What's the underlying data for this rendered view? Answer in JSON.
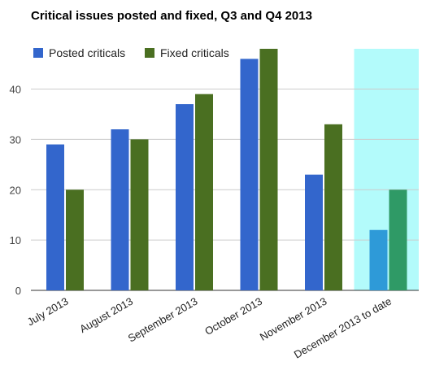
{
  "chart_data": {
    "type": "bar",
    "title": "Critical issues posted and fixed, Q3 and Q4 2013",
    "categories": [
      "July 2013",
      "August 2013",
      "September 2013",
      "October 2013",
      "November 2013",
      "December 2013 to date"
    ],
    "series": [
      {
        "name": "Posted criticals",
        "values": [
          29,
          32,
          37,
          46,
          23,
          12
        ],
        "color": "#3366cc"
      },
      {
        "name": "Fixed criticals",
        "values": [
          20,
          30,
          39,
          48,
          33,
          20
        ],
        "color": "#4a6f21"
      }
    ],
    "highlight": {
      "category": "December 2013 to date",
      "band_color": "#b3fbfb",
      "bar_colors": [
        "#2e9ad8",
        "#2f9a66"
      ]
    },
    "ylim": [
      0,
      48
    ],
    "yticks": [
      0,
      10,
      20,
      30,
      40
    ],
    "grid": true,
    "legend_position": "top-left",
    "xlabel": "",
    "ylabel": ""
  }
}
